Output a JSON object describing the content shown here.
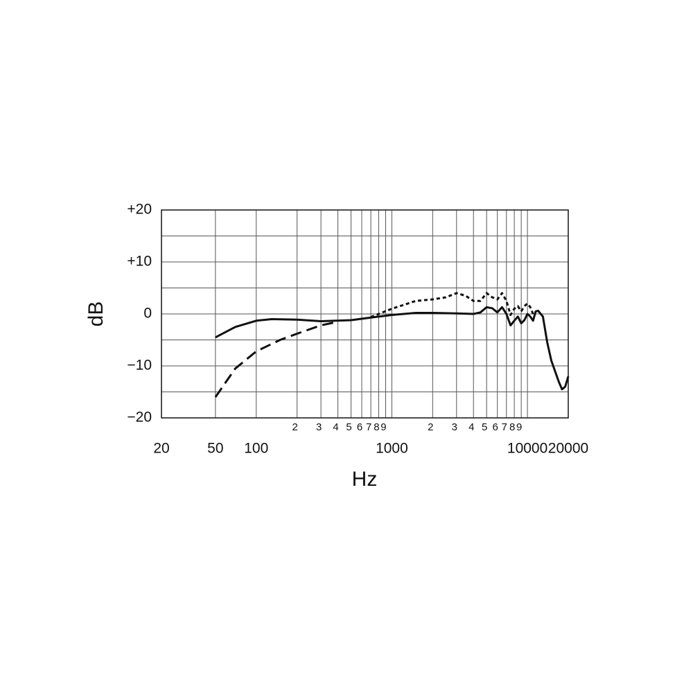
{
  "chart_data": {
    "type": "line",
    "log_x": true,
    "grid": true,
    "xlabel": "Hz",
    "ylabel": "dB",
    "xlim": [
      20,
      20000
    ],
    "ylim": [
      -20,
      20
    ],
    "xticks": [
      20,
      50,
      100,
      1000,
      10000,
      20000
    ],
    "xticks_minor": [
      {
        "value": 200,
        "label": "2"
      },
      {
        "value": 300,
        "label": "3"
      },
      {
        "value": 400,
        "label": "4"
      },
      {
        "value": 500,
        "label": "5"
      },
      {
        "value": 600,
        "label": "6"
      },
      {
        "value": 700,
        "label": "7"
      },
      {
        "value": 800,
        "label": "8"
      },
      {
        "value": 900,
        "label": "9"
      },
      {
        "value": 2000,
        "label": "2"
      },
      {
        "value": 3000,
        "label": "3"
      },
      {
        "value": 4000,
        "label": "4"
      },
      {
        "value": 5000,
        "label": "5"
      },
      {
        "value": 6000,
        "label": "6"
      },
      {
        "value": 7000,
        "label": "7"
      },
      {
        "value": 8000,
        "label": "8"
      },
      {
        "value": 9000,
        "label": "9"
      }
    ],
    "yticks": [
      {
        "value": -20,
        "label": "−20"
      },
      {
        "value": -10,
        "label": "−10"
      },
      0,
      {
        "value": 10,
        "label": "+10"
      },
      {
        "value": 20,
        "label": "+20"
      }
    ],
    "ygrid": [
      -15,
      -5,
      5,
      15
    ],
    "series": [
      {
        "color": "#111111",
        "dash": "solid",
        "x": [
          50,
          70,
          100,
          130,
          200,
          300,
          500,
          700,
          1000,
          1500,
          2000,
          3000,
          4000,
          4500,
          5000,
          5500,
          6000,
          6500,
          7000,
          7500,
          8000,
          8500,
          9000,
          9500,
          10000,
          10500,
          11000,
          11500,
          12000,
          13000,
          14000,
          15000,
          17000,
          18000,
          19000,
          20000
        ],
        "values": [
          -4.5,
          -2.5,
          -1.3,
          -1.0,
          -1.1,
          -1.4,
          -1.2,
          -0.7,
          -0.2,
          0.2,
          0.2,
          0.1,
          0.0,
          0.3,
          1.3,
          1.1,
          0.3,
          1.3,
          0.0,
          -2.2,
          -1.3,
          -0.5,
          -1.8,
          -1.2,
          0.0,
          -0.5,
          -1.3,
          0.5,
          0.6,
          -0.5,
          -5.5,
          -9.0,
          -13.0,
          -14.5,
          -14.0,
          -12.0
        ]
      },
      {
        "color": "#111111",
        "dash": "dashed",
        "x": [
          50,
          70,
          100,
          150,
          200,
          300,
          400
        ],
        "values": [
          -16,
          -10.5,
          -7.2,
          -5,
          -3.8,
          -2.2,
          -1.5
        ]
      },
      {
        "color": "#111111",
        "dash": "dotted",
        "x": [
          700,
          1000,
          1500,
          2000,
          2500,
          3000,
          3500,
          4000,
          4500,
          5000,
          5500,
          6000,
          6500,
          7000,
          7500,
          8000,
          8500,
          9000,
          9500,
          10000,
          10500,
          11000
        ],
        "values": [
          -0.6,
          1.0,
          2.5,
          2.8,
          3.2,
          4.0,
          3.5,
          2.5,
          2.5,
          4.0,
          3.2,
          2.8,
          4.0,
          2.5,
          -0.2,
          1.0,
          1.5,
          0.5,
          1.5,
          2.0,
          1.3,
          0.0
        ]
      }
    ]
  }
}
